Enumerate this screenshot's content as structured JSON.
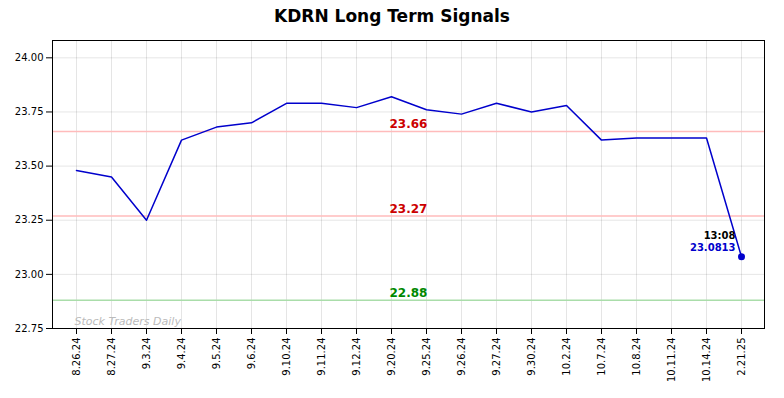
{
  "chart_data": {
    "type": "line",
    "title": "KDRN Long Term Signals",
    "categories": [
      "8.26.24",
      "8.27.24",
      "9.3.24",
      "9.4.24",
      "9.5.24",
      "9.6.24",
      "9.10.24",
      "9.11.24",
      "9.12.24",
      "9.20.24",
      "9.25.24",
      "9.26.24",
      "9.27.24",
      "9.30.24",
      "10.2.24",
      "10.7.24",
      "10.8.24",
      "10.11.24",
      "10.14.24",
      "2.21.25"
    ],
    "values": [
      23.48,
      23.45,
      23.25,
      23.62,
      23.68,
      23.7,
      23.79,
      23.79,
      23.77,
      23.82,
      23.76,
      23.74,
      23.79,
      23.75,
      23.78,
      23.62,
      23.63,
      23.63,
      23.63,
      23.0813
    ],
    "color": "#0000cc",
    "ylim": [
      22.75,
      24.08
    ],
    "yticks": [
      22.75,
      {
        "value": 23.0,
        "label": "23.00"
      },
      23.25,
      {
        "value": 23.5,
        "label": "23.50"
      },
      23.75,
      {
        "value": 24.0,
        "label": "24.00"
      }
    ],
    "grid": true,
    "hlines": [
      {
        "value": 23.66,
        "color": "#ffbbbb",
        "label": "23.66",
        "label_color": "#cc0000"
      },
      {
        "value": 23.27,
        "color": "#ffbbbb",
        "label": "23.27",
        "label_color": "#cc0000"
      },
      {
        "value": 22.88,
        "color": "#aaddaa",
        "label": "22.88",
        "label_color": "#008800"
      }
    ],
    "annotations": [
      {
        "text": "13:08",
        "color": "#000000"
      },
      {
        "text": "23.0813",
        "color": "#0000cc"
      }
    ],
    "watermark": {
      "text": "Stock Traders Daily",
      "color": "#bbbbbb"
    }
  }
}
